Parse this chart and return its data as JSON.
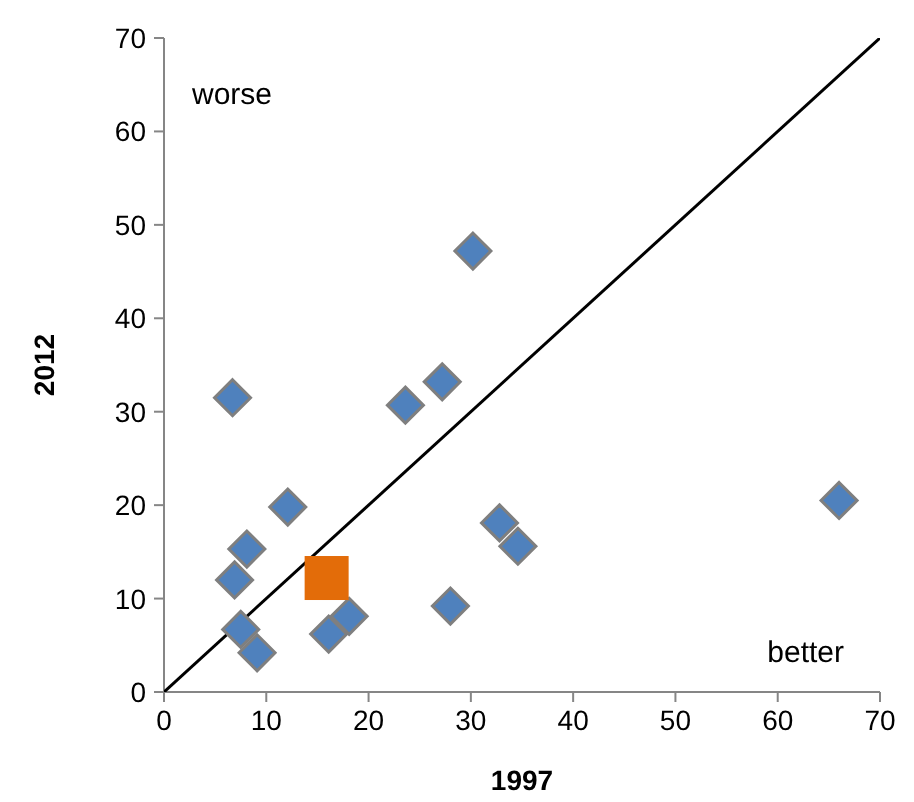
{
  "chart_data": {
    "type": "scatter",
    "xlabel": "1997",
    "ylabel": "2012",
    "xlim": [
      0,
      70
    ],
    "ylim": [
      0,
      70
    ],
    "xticks": [
      0,
      10,
      20,
      30,
      40,
      50,
      60,
      70
    ],
    "yticks": [
      0,
      10,
      20,
      30,
      40,
      50,
      60,
      70
    ],
    "grid": false,
    "annotations": [
      "worse",
      "better"
    ],
    "series": [
      {
        "type": "line",
        "color": "#000000",
        "marker": "none",
        "x": [
          0,
          70
        ],
        "values": [
          0,
          70
        ]
      },
      {
        "color": "#4f81bd",
        "marker": "diamond",
        "x": [
          6.7,
          12.1,
          8.1,
          6.9,
          7.5,
          9.1,
          16.1,
          18.1,
          23.6,
          27.2,
          30.2,
          28.0,
          32.8,
          34.6,
          66.0
        ],
        "values": [
          31.5,
          19.8,
          15.3,
          12.0,
          6.7,
          4.2,
          6.2,
          8.1,
          30.7,
          33.2,
          47.2,
          9.2,
          18.1,
          15.6,
          20.5
        ]
      },
      {
        "color": "#e36c09",
        "marker": "square",
        "x": [
          15.9
        ],
        "values": [
          12.2
        ]
      }
    ]
  }
}
